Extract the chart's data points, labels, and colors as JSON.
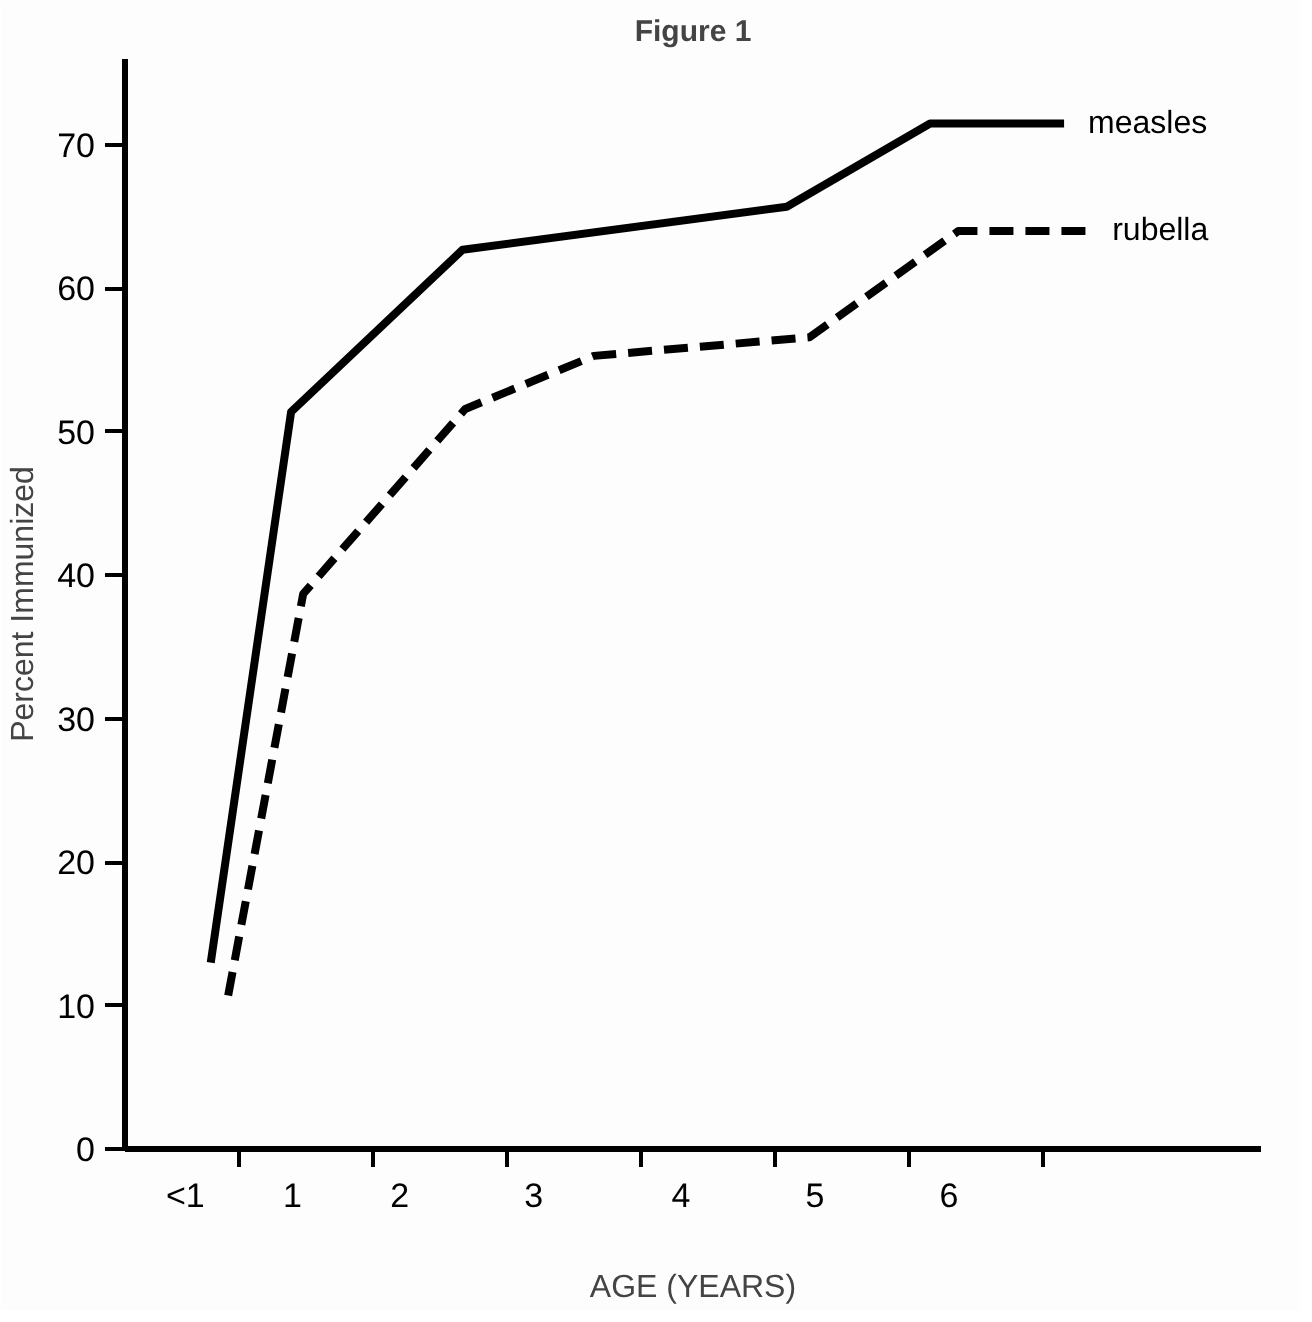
{
  "chart_data": {
    "type": "line",
    "title": "Figure 1",
    "xlabel": "AGE (YEARS)",
    "ylabel": "Percent Immunized",
    "xlim": [
      -0.35,
      8.13
    ],
    "ylim": [
      0,
      76
    ],
    "xticks": [
      {
        "value": 0.1,
        "label": "<1"
      },
      {
        "value": 0.9,
        "label": "1"
      },
      {
        "value": 1.7,
        "label": "2"
      },
      {
        "value": 2.7,
        "label": "3"
      },
      {
        "value": 3.8,
        "label": "4"
      },
      {
        "value": 4.8,
        "label": "5"
      },
      {
        "value": 5.8,
        "label": "6"
      },
      {
        "value": 0.5,
        "label": null
      },
      {
        "value": 1.5,
        "label": null
      },
      {
        "value": 2.5,
        "label": null
      },
      {
        "value": 3.5,
        "label": null
      },
      {
        "value": 4.5,
        "label": null
      },
      {
        "value": 5.5,
        "label": null
      },
      {
        "value": 6.5,
        "label": null
      }
    ],
    "yticks": [
      0,
      10,
      20,
      30,
      40,
      50,
      60,
      70
    ],
    "grid": false,
    "legend": false,
    "marker": "none",
    "series": [
      {
        "name": "measles",
        "color": "#000000",
        "line_style": "solid",
        "x": [
          0.29,
          0.89,
          2.17,
          4.59,
          5.66,
          6.66
        ],
        "values": [
          13,
          51.4,
          62.7,
          65.7,
          71.5,
          71.5
        ]
      },
      {
        "name": "rubella",
        "color": "#000000",
        "line_style": "dashed",
        "x": [
          0.42,
          0.98,
          2.19,
          3.15,
          4.76,
          5.87,
          6.84
        ],
        "values": [
          10.7,
          38.7,
          51.6,
          55.3,
          56.6,
          64,
          64
        ]
      }
    ]
  }
}
